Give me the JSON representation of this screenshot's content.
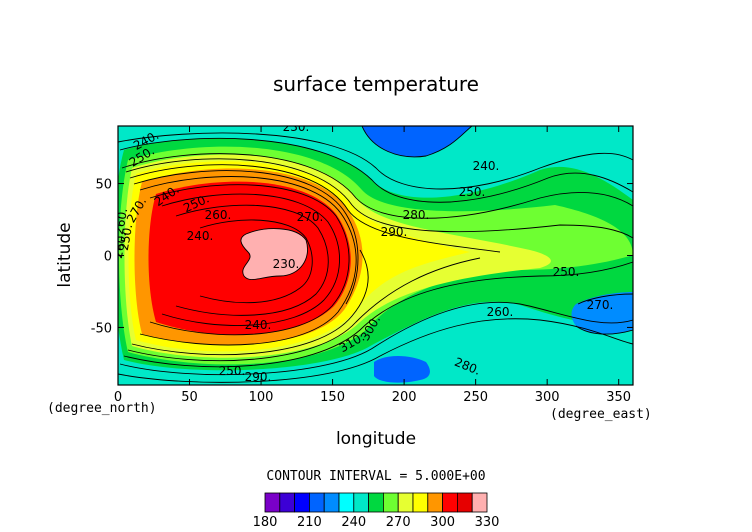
{
  "chart_data": {
    "type": "heatmap",
    "title": "surface temperature",
    "xlabel": "longitude",
    "ylabel": "latitude",
    "x_unit": "(degree_east)",
    "y_unit": "(degree_north)",
    "xlim": [
      0,
      360
    ],
    "ylim": [
      -90,
      90
    ],
    "x_ticks": [
      0,
      50,
      100,
      150,
      200,
      250,
      300,
      350
    ],
    "y_ticks": [
      -50,
      0,
      50
    ],
    "contour_interval_text": "CONTOUR INTERVAL = 5.000E+00",
    "colorbar": {
      "levels": [
        180,
        190,
        200,
        210,
        220,
        230,
        240,
        250,
        260,
        270,
        280,
        290,
        300,
        310,
        320,
        330
      ],
      "tick_labels": [
        "180",
        "210",
        "240",
        "270",
        "300",
        "330"
      ],
      "colors": [
        "#7a00c8",
        "#3c00d6",
        "#0000ff",
        "#0064ff",
        "#008cff",
        "#00ffff",
        "#00e8c8",
        "#00d840",
        "#6eff32",
        "#e6ff32",
        "#ffff00",
        "#ff9600",
        "#ff0000",
        "#e60000",
        "#ffb0b0"
      ]
    },
    "contour_labels": [
      "230.",
      "240.",
      "250.",
      "260.",
      "270.",
      "280.",
      "290.",
      "300.",
      "310.",
      "240.",
      "250.",
      "260.",
      "270.",
      "240.",
      "250.",
      "260.",
      "270.",
      "280.",
      "290.",
      "250.",
      "240.",
      "230.",
      "240.",
      "250.",
      "260.",
      "250."
    ]
  }
}
